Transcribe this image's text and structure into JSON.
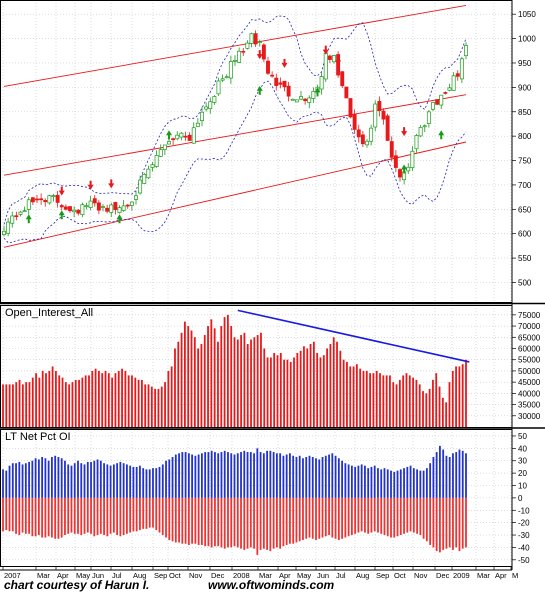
{
  "footer": {
    "credit": "chart courtesy of Harun I.",
    "site": "www.oftwominds.com"
  },
  "colors": {
    "up_candle": "#1a9a1a",
    "down_candle": "#e8191a",
    "channel": "#e81818",
    "band": "#2222bb",
    "oi_bar": "#e8191a",
    "trend": "#1a1ae0",
    "net_pos": "#2233cc",
    "net_neg": "#ee3333",
    "grid": "#c8c8c8"
  },
  "chart_data": [
    {
      "type": "candlestick",
      "panel": "price",
      "title": "",
      "y_ticks": [
        500,
        550,
        600,
        650,
        700,
        750,
        800,
        850,
        900,
        950,
        1000,
        1050
      ],
      "ylim": [
        460,
        1075
      ],
      "grid": true,
      "x_labels": [
        "2007",
        "Mar",
        "Apr",
        "May",
        "Jun",
        "Jul",
        "Aug",
        "Sep",
        "Oct",
        "Nov",
        "Dec",
        "2008",
        "Mar",
        "Apr",
        "May",
        "Jun",
        "Jul",
        "Aug",
        "Sep",
        "Oct",
        "Nov",
        "Dec",
        "2009",
        "Mar",
        "Apr",
        "M"
      ],
      "price_anchors": [
        [
          0,
          615
        ],
        [
          3,
          640
        ],
        [
          6,
          660
        ],
        [
          9,
          675
        ],
        [
          12,
          670
        ],
        [
          15,
          655
        ],
        [
          18,
          650
        ],
        [
          21,
          660
        ],
        [
          24,
          655
        ],
        [
          27,
          650
        ],
        [
          30,
          662
        ],
        [
          33,
          700
        ],
        [
          36,
          740
        ],
        [
          39,
          785
        ],
        [
          42,
          805
        ],
        [
          45,
          800
        ],
        [
          48,
          850
        ],
        [
          51,
          890
        ],
        [
          54,
          930
        ],
        [
          57,
          970
        ],
        [
          60,
          1000
        ],
        [
          62,
          990
        ],
        [
          64,
          930
        ],
        [
          67,
          900
        ],
        [
          70,
          885
        ],
        [
          73,
          875
        ],
        [
          76,
          900
        ],
        [
          78,
          960
        ],
        [
          80,
          960
        ],
        [
          82,
          900
        ],
        [
          84,
          840
        ],
        [
          86,
          790
        ],
        [
          88,
          780
        ],
        [
          90,
          860
        ],
        [
          92,
          830
        ],
        [
          94,
          750
        ],
        [
          96,
          720
        ],
        [
          98,
          740
        ],
        [
          100,
          800
        ],
        [
          102,
          830
        ],
        [
          104,
          870
        ],
        [
          106,
          880
        ],
        [
          108,
          900
        ],
        [
          110,
          930
        ],
        [
          112,
          990
        ]
      ],
      "channel_lines": [
        [
          0,
          902,
          112,
          1068
        ],
        [
          0,
          720,
          112,
          885
        ],
        [
          0,
          572,
          112,
          788
        ]
      ],
      "buy_arrows": [
        [
          6,
          640
        ],
        [
          14,
          648
        ],
        [
          28,
          640
        ],
        [
          40,
          812
        ],
        [
          62,
          903
        ],
        [
          76,
          900
        ],
        [
          97,
          742
        ],
        [
          106,
          812
        ]
      ],
      "sell_arrows": [
        [
          14,
          678
        ],
        [
          21,
          690
        ],
        [
          26,
          693
        ],
        [
          62,
          958
        ],
        [
          68,
          940
        ],
        [
          78,
          967
        ],
        [
          81,
          945
        ],
        [
          97,
          800
        ]
      ]
    },
    {
      "type": "bar",
      "panel": "open_interest",
      "title": "Open_Interest_All",
      "y_ticks": [
        30000,
        35000,
        40000,
        45000,
        50000,
        55000,
        60000,
        65000,
        70000,
        75000
      ],
      "ylim": [
        25000,
        78500
      ],
      "grid": true,
      "values": [
        44000,
        44000,
        44000,
        44000,
        45000,
        46000,
        44000,
        45000,
        45000,
        47000,
        49000,
        47000,
        50000,
        49000,
        50000,
        52000,
        50000,
        48000,
        47000,
        45000,
        44000,
        45000,
        46000,
        46000,
        47000,
        48000,
        48000,
        50000,
        51000,
        50000,
        49000,
        50000,
        49000,
        47000,
        49000,
        50000,
        51000,
        50000,
        48000,
        48000,
        47000,
        46000,
        46000,
        44000,
        44000,
        43000,
        42000,
        42000,
        43000,
        45000,
        50000,
        52000,
        60000,
        63000,
        67000,
        72000,
        70000,
        68000,
        65000,
        60000,
        62000,
        66000,
        70000,
        73000,
        69000,
        63000,
        70000,
        74000,
        75000,
        70000,
        65000,
        64000,
        66000,
        67000,
        62000,
        64000,
        65000,
        66000,
        67000,
        60000,
        56000,
        56000,
        58000,
        57000,
        58000,
        55000,
        55000,
        54000,
        56000,
        58000,
        59000,
        61000,
        60000,
        62000,
        63000,
        58000,
        56000,
        57000,
        60000,
        62000,
        65000,
        63000,
        59000,
        55000,
        54000,
        52000,
        52000,
        53000,
        51000,
        50000,
        50000,
        49000,
        49000,
        50000,
        49000,
        48000,
        48000,
        48000,
        45000,
        44000,
        46000,
        48000,
        49000,
        48000,
        47000,
        46000,
        44000,
        41000,
        40000,
        42000,
        46000,
        49000,
        43000,
        38000,
        36000,
        45000,
        50000,
        52000,
        52000,
        53000,
        55000
      ],
      "trend_line": [
        [
          71,
          77000
        ],
        [
          141,
          54000
        ]
      ]
    },
    {
      "type": "bar",
      "panel": "lt_net_pct_oi",
      "title": "LT Net Pct OI",
      "y_ticks": [
        -50,
        -40,
        -30,
        -20,
        -10,
        0,
        10,
        20,
        30,
        40,
        50
      ],
      "ylim": [
        -55,
        54
      ],
      "grid": true,
      "pos_values": [
        23,
        22,
        26,
        28,
        28,
        29,
        27,
        28,
        29,
        30,
        32,
        31,
        33,
        32,
        30,
        33,
        34,
        33,
        32,
        30,
        27,
        26,
        28,
        30,
        28,
        27,
        29,
        29,
        30,
        31,
        30,
        28,
        27,
        26,
        27,
        28,
        29,
        28,
        27,
        26,
        25,
        25,
        26,
        24,
        23,
        23,
        24,
        24,
        25,
        27,
        30,
        31,
        33,
        35,
        36,
        37,
        37,
        36,
        35,
        34,
        35,
        36,
        37,
        37,
        38,
        37,
        36,
        37,
        38,
        37,
        36,
        35,
        36,
        37,
        38,
        37,
        37,
        36,
        40,
        37,
        36,
        38,
        38,
        37,
        36,
        36,
        34,
        35,
        36,
        34,
        33,
        34,
        32,
        33,
        34,
        33,
        32,
        31,
        33,
        34,
        35,
        36,
        34,
        32,
        30,
        28,
        27,
        26,
        25,
        26,
        27,
        26,
        24,
        25,
        26,
        24,
        23,
        24,
        23,
        22,
        21,
        22,
        23,
        24,
        25,
        26,
        24,
        23,
        22,
        22,
        24,
        28,
        33,
        37,
        42,
        39,
        34,
        33,
        36,
        37,
        39,
        38,
        36
      ],
      "neg_values": [
        -27,
        -26,
        -27,
        -27,
        -29,
        -30,
        -28,
        -29,
        -29,
        -31,
        -31,
        -30,
        -32,
        -32,
        -31,
        -32,
        -33,
        -33,
        -32,
        -30,
        -29,
        -28,
        -29,
        -29,
        -30,
        -29,
        -28,
        -29,
        -31,
        -30,
        -29,
        -30,
        -31,
        -29,
        -28,
        -30,
        -31,
        -30,
        -29,
        -28,
        -27,
        -27,
        -26,
        -25,
        -25,
        -24,
        -24,
        -26,
        -28,
        -30,
        -32,
        -34,
        -35,
        -36,
        -36,
        -37,
        -37,
        -38,
        -37,
        -37,
        -38,
        -38,
        -39,
        -39,
        -40,
        -39,
        -39,
        -40,
        -41,
        -40,
        -40,
        -39,
        -40,
        -41,
        -42,
        -41,
        -40,
        -41,
        -46,
        -42,
        -41,
        -42,
        -43,
        -41,
        -40,
        -41,
        -39,
        -38,
        -37,
        -37,
        -36,
        -35,
        -34,
        -33,
        -32,
        -33,
        -34,
        -33,
        -32,
        -31,
        -30,
        -32,
        -33,
        -34,
        -33,
        -32,
        -31,
        -30,
        -29,
        -28,
        -27,
        -28,
        -29,
        -28,
        -27,
        -28,
        -29,
        -30,
        -31,
        -32,
        -32,
        -31,
        -30,
        -29,
        -28,
        -27,
        -28,
        -29,
        -30,
        -33,
        -35,
        -38,
        -40,
        -43,
        -44,
        -42,
        -41,
        -40,
        -42,
        -40,
        -43,
        -41,
        -40
      ]
    }
  ]
}
